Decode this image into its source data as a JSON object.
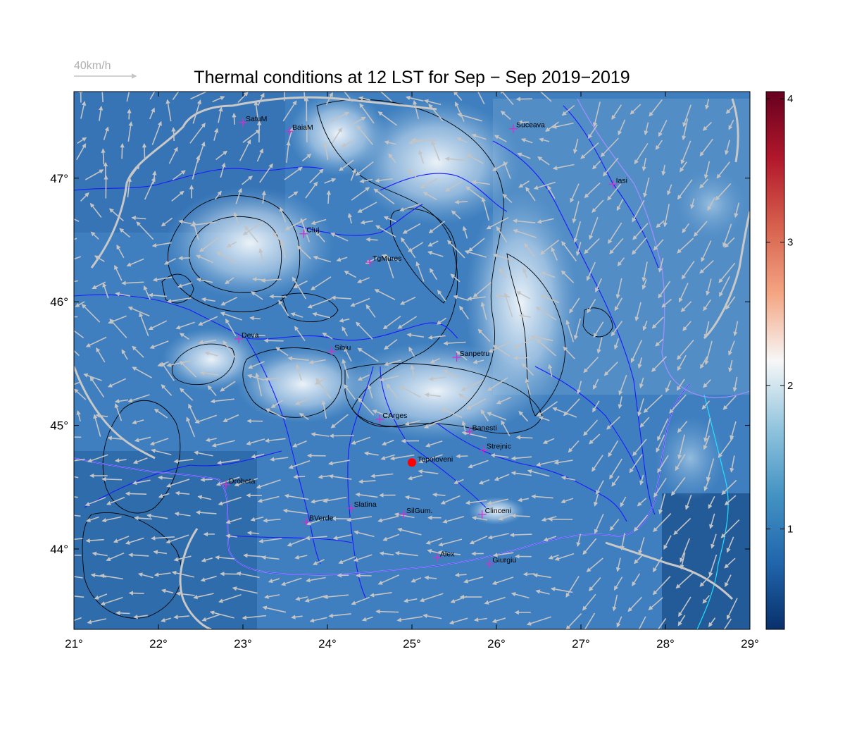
{
  "title": "Thermal conditions at 12 LST for Sep − Sep  2019−2019",
  "wind_legend": {
    "label": "40km/h"
  },
  "map": {
    "lon_range": [
      21,
      29
    ],
    "lat_range": [
      43.35,
      47.7
    ],
    "x_ticks": [
      {
        "value": 21,
        "label": "21°"
      },
      {
        "value": 22,
        "label": "22°"
      },
      {
        "value": 23,
        "label": "23°"
      },
      {
        "value": 24,
        "label": "24°"
      },
      {
        "value": 25,
        "label": "25°"
      },
      {
        "value": 26,
        "label": "26°"
      },
      {
        "value": 27,
        "label": "27°"
      },
      {
        "value": 28,
        "label": "28°"
      },
      {
        "value": 29,
        "label": "29°"
      }
    ],
    "y_ticks": [
      {
        "value": 44,
        "label": "44°"
      },
      {
        "value": 45,
        "label": "45°"
      },
      {
        "value": 46,
        "label": "46°"
      },
      {
        "value": 47,
        "label": "47°"
      }
    ],
    "highlight_color": "#ff0000",
    "marker_color": "#cc33cc",
    "river_color": "#1a1aff",
    "border_color": "#c8c8c8",
    "cities": [
      {
        "name": "SatuM",
        "lon": 23.0,
        "lat": 47.45
      },
      {
        "name": "BaiaM",
        "lon": 23.55,
        "lat": 47.38
      },
      {
        "name": "Suceava",
        "lon": 26.2,
        "lat": 47.4
      },
      {
        "name": "Iasi",
        "lon": 27.38,
        "lat": 46.95
      },
      {
        "name": "Cluj",
        "lon": 23.72,
        "lat": 46.55
      },
      {
        "name": "TgMures",
        "lon": 24.5,
        "lat": 46.32
      },
      {
        "name": "Deva",
        "lon": 22.95,
        "lat": 45.7
      },
      {
        "name": "Sibiu",
        "lon": 24.05,
        "lat": 45.6
      },
      {
        "name": "Sanpetru",
        "lon": 25.53,
        "lat": 45.55
      },
      {
        "name": "CArges",
        "lon": 24.62,
        "lat": 45.05
      },
      {
        "name": "Banesti",
        "lon": 25.68,
        "lat": 44.95
      },
      {
        "name": "Strejnic",
        "lon": 25.85,
        "lat": 44.8
      },
      {
        "name": "Drobeta",
        "lon": 22.8,
        "lat": 44.52
      },
      {
        "name": "Slatina",
        "lon": 24.28,
        "lat": 44.33
      },
      {
        "name": "SilGum.",
        "lon": 24.9,
        "lat": 44.28
      },
      {
        "name": "Clinceni",
        "lon": 25.83,
        "lat": 44.28
      },
      {
        "name": "BVerde",
        "lon": 23.75,
        "lat": 44.22
      },
      {
        "name": "Alex",
        "lon": 25.3,
        "lat": 43.93
      },
      {
        "name": "Giurgiu",
        "lon": 25.92,
        "lat": 43.88
      }
    ],
    "highlight_site": {
      "name": "Topoloveni",
      "lon": 25.0,
      "lat": 44.7
    }
  },
  "colorbar": {
    "range": [
      0.3,
      4.05
    ],
    "ticks": [
      {
        "value": 1,
        "label": "1"
      },
      {
        "value": 2,
        "label": "2"
      },
      {
        "value": 3,
        "label": "3"
      },
      {
        "value": 4,
        "label": "4"
      }
    ],
    "stops": [
      "#08306b",
      "#2166ac",
      "#4393c3",
      "#92c5de",
      "#f7f7f7",
      "#f4a582",
      "#d6604d",
      "#b2182b",
      "#67001f"
    ]
  }
}
